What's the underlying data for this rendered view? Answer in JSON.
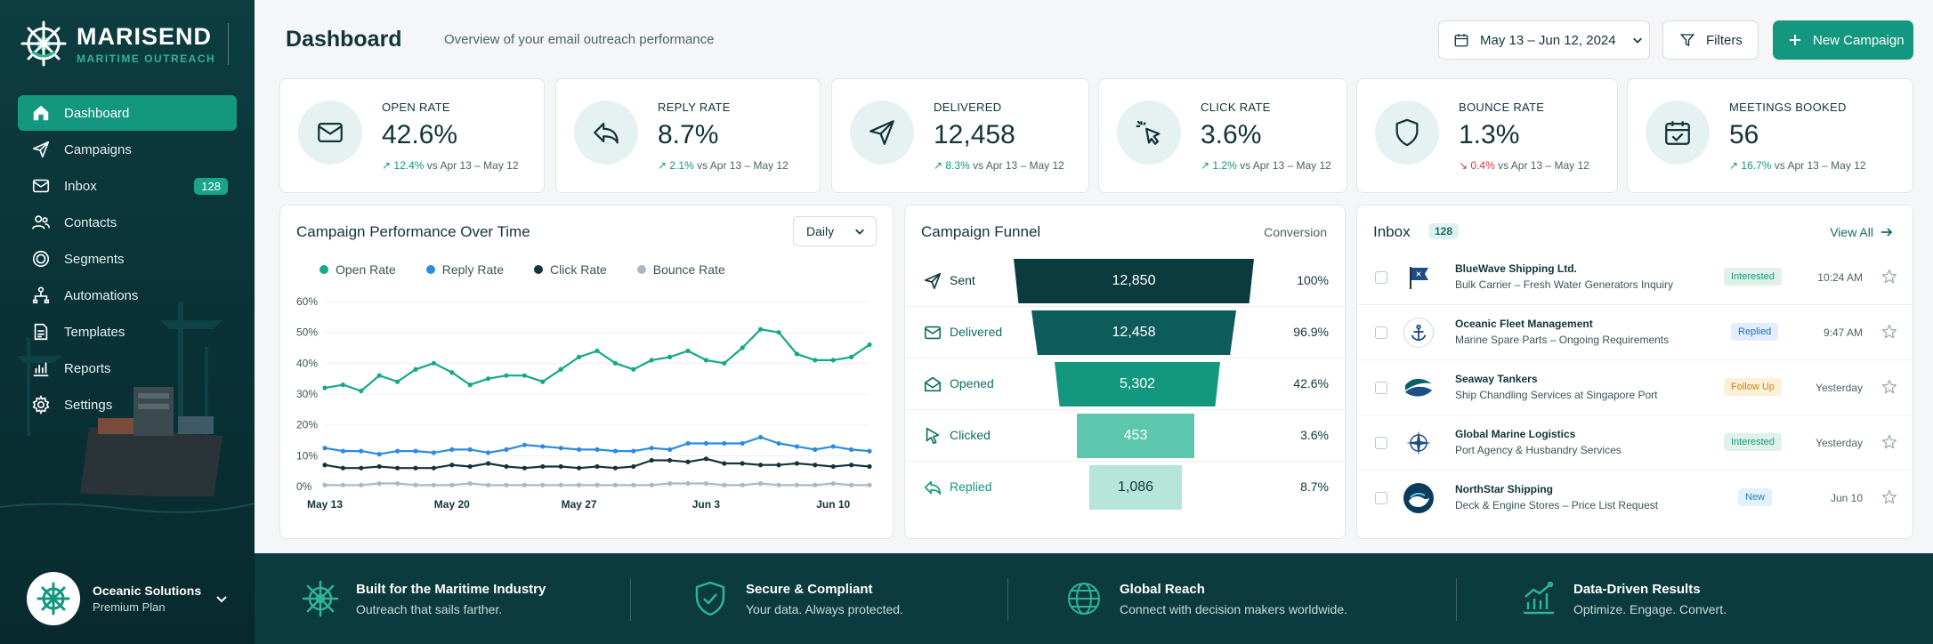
{
  "brand": {
    "name": "MARISEND",
    "tagline": "MARITIME OUTREACH"
  },
  "nav": [
    {
      "label": "Dashboard",
      "icon": "home-icon",
      "active": true
    },
    {
      "label": "Campaigns",
      "icon": "send-icon"
    },
    {
      "label": "Inbox",
      "icon": "mail-icon",
      "badge": "128"
    },
    {
      "label": "Contacts",
      "icon": "users-icon"
    },
    {
      "label": "Segments",
      "icon": "target-icon"
    },
    {
      "label": "Automations",
      "icon": "automation-icon"
    },
    {
      "label": "Templates",
      "icon": "document-icon"
    },
    {
      "label": "Reports",
      "icon": "bar-chart-icon"
    },
    {
      "label": "Settings",
      "icon": "gear-icon"
    }
  ],
  "account": {
    "name": "Oceanic Solutions",
    "plan": "Premium Plan"
  },
  "header": {
    "title": "Dashboard",
    "subtitle": "Overview of your email outreach performance",
    "date_range": "May 13 – Jun 12, 2024",
    "filters_label": "Filters",
    "new_campaign_label": "New Campaign"
  },
  "kpis": [
    {
      "label": "OPEN RATE",
      "value": "42.6%",
      "delta": "12.4%",
      "direction": "up",
      "compare": "vs Apr 13 – May 12"
    },
    {
      "label": "REPLY RATE",
      "value": "8.7%",
      "delta": "2.1%",
      "direction": "up",
      "compare": "vs Apr 13 – May 12"
    },
    {
      "label": "DELIVERED",
      "value": "12,458",
      "delta": "8.3%",
      "direction": "up",
      "compare": "vs Apr 13 – May 12"
    },
    {
      "label": "CLICK RATE",
      "value": "3.6%",
      "delta": "1.2%",
      "direction": "up",
      "compare": "vs Apr 13 – May 12"
    },
    {
      "label": "BOUNCE RATE",
      "value": "1.3%",
      "delta": "0.4%",
      "direction": "down",
      "compare": "vs Apr 13 – May 12"
    },
    {
      "label": "MEETINGS BOOKED",
      "value": "56",
      "delta": "16.7%",
      "direction": "up",
      "compare": "vs Apr 13 – May 12"
    }
  ],
  "performance": {
    "title": "Campaign Performance Over Time",
    "granularity": "Daily"
  },
  "chart_data": {
    "type": "line",
    "title": "Campaign Performance Over Time",
    "x": [
      "May 13",
      "May 14",
      "May 15",
      "May 16",
      "May 17",
      "May 18",
      "May 19",
      "May 20",
      "May 21",
      "May 22",
      "May 23",
      "May 24",
      "May 25",
      "May 26",
      "May 27",
      "May 28",
      "May 29",
      "May 30",
      "May 31",
      "Jun 1",
      "Jun 2",
      "Jun 3",
      "Jun 4",
      "Jun 5",
      "Jun 6",
      "Jun 7",
      "Jun 8",
      "Jun 9",
      "Jun 10",
      "Jun 11",
      "Jun 12"
    ],
    "x_tick_labels": [
      "May 13",
      "May 20",
      "May 27",
      "Jun 3",
      "Jun 10"
    ],
    "y_ticks": [
      "0%",
      "10%",
      "20%",
      "30%",
      "40%",
      "50%",
      "60%"
    ],
    "ylim": [
      0,
      60
    ],
    "grid": true,
    "legend": "top",
    "series": [
      {
        "name": "Open Rate",
        "color": "#14a88a",
        "values": [
          32,
          33,
          31,
          36,
          34,
          38,
          40,
          37,
          33,
          35,
          36,
          36,
          34,
          38,
          42,
          44,
          40,
          38,
          41,
          42,
          44,
          41,
          40,
          45,
          51,
          50,
          43,
          41,
          41,
          42,
          46
        ]
      },
      {
        "name": "Reply Rate",
        "color": "#2b8be0",
        "values": [
          12.5,
          11.5,
          11.5,
          10.5,
          11.5,
          11.5,
          11,
          12,
          12,
          11,
          12,
          13.5,
          13,
          12.5,
          12,
          12,
          11.5,
          11.5,
          12.5,
          12,
          14,
          14,
          14,
          14,
          16,
          14,
          13,
          12,
          13,
          12,
          11.5
        ]
      },
      {
        "name": "Click Rate",
        "color": "#12343a",
        "values": [
          7,
          6,
          6,
          6.5,
          6,
          6,
          6,
          7,
          6.5,
          7.5,
          6.5,
          6,
          6.5,
          6.5,
          6,
          6.5,
          6,
          6.5,
          8.5,
          8.5,
          8,
          9,
          7.5,
          7.5,
          7,
          7,
          7.5,
          7,
          6.5,
          7,
          6.5
        ]
      },
      {
        "name": "Bounce Rate",
        "color": "#aab8c6",
        "values": [
          0.5,
          0.5,
          0.5,
          1,
          1,
          0.5,
          0.5,
          0.5,
          1,
          0.5,
          0.5,
          0.5,
          0.5,
          0.5,
          0.5,
          0.5,
          0.5,
          0.5,
          0.5,
          1,
          1,
          1,
          0.5,
          0.5,
          1,
          0.5,
          0.5,
          0.5,
          1,
          0.5,
          0.5
        ]
      }
    ]
  },
  "funnel": {
    "title": "Campaign Funnel",
    "conversion_label": "Conversion",
    "stages": [
      {
        "label": "Sent",
        "value": "12,850",
        "pct": "100%",
        "icon": "send-icon"
      },
      {
        "label": "Delivered",
        "value": "12,458",
        "pct": "96.9%",
        "icon": "mail-icon"
      },
      {
        "label": "Opened",
        "value": "5,302",
        "pct": "42.6%",
        "icon": "mail-open-icon"
      },
      {
        "label": "Clicked",
        "value": "453",
        "pct": "3.6%",
        "icon": "cursor-icon"
      },
      {
        "label": "Replied",
        "value": "1,086",
        "pct": "8.7%",
        "icon": "reply-icon"
      }
    ]
  },
  "inbox": {
    "title": "Inbox",
    "badge": "128",
    "view_all": "View All",
    "messages": [
      {
        "sender": "BlueWave Shipping Ltd.",
        "subject": "Bulk Carrier – Fresh Water Generators Inquiry",
        "tag": "Interested",
        "time": "10:24 AM",
        "logo": "flag-icon"
      },
      {
        "sender": "Oceanic Fleet Management",
        "subject": "Marine Spare Parts – Ongoing Requirements",
        "tag": "Replied",
        "time": "9:47 AM",
        "logo": "anchor-icon"
      },
      {
        "sender": "Seaway Tankers",
        "subject": "Ship Chandling Services at Singapore Port",
        "tag": "Follow Up",
        "time": "Yesterday",
        "logo": "wave-icon"
      },
      {
        "sender": "Global Marine Logistics",
        "subject": "Port Agency & Husbandry Services",
        "tag": "Interested",
        "time": "Yesterday",
        "logo": "compass-icon"
      },
      {
        "sender": "NorthStar Shipping",
        "subject": "Deck & Engine Stores – Price List Request",
        "tag": "New",
        "time": "Jun 10",
        "logo": "ocean-icon"
      }
    ]
  },
  "features": [
    {
      "title": "Built for the Maritime Industry",
      "subtitle": "Outreach that sails farther.",
      "icon": "ship-wheel-icon"
    },
    {
      "title": "Secure & Compliant",
      "subtitle": "Your data. Always protected.",
      "icon": "shield-check-icon"
    },
    {
      "title": "Global Reach",
      "subtitle": "Connect with decision makers worldwide.",
      "icon": "globe-icon"
    },
    {
      "title": "Data-Driven Results",
      "subtitle": "Optimize. Engage. Convert.",
      "icon": "growth-chart-icon"
    }
  ]
}
